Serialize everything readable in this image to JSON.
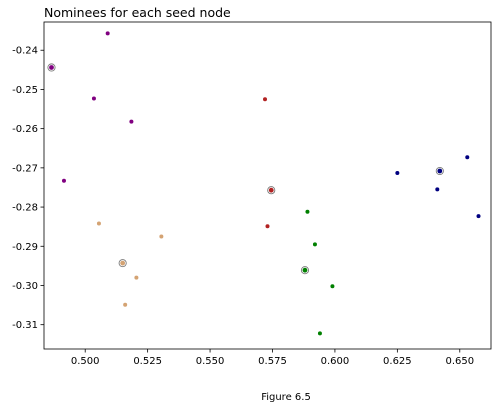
{
  "caption": "Figure 6.5",
  "chart_data": {
    "type": "scatter",
    "title": "Nominees for each seed node",
    "xlabel": "",
    "ylabel": "",
    "xlim": [
      0.4835,
      0.6625
    ],
    "ylim": [
      -0.3162,
      -0.2328
    ],
    "x_ticks": [
      "0.500",
      "0.525",
      "0.550",
      "0.575",
      "0.600",
      "0.625",
      "0.650"
    ],
    "x_tick_values": [
      0.5,
      0.525,
      0.55,
      0.575,
      0.6,
      0.625,
      0.65
    ],
    "y_ticks": [
      "-0.24",
      "-0.25",
      "-0.26",
      "-0.27",
      "-0.28",
      "-0.29",
      "-0.30",
      "-0.31"
    ],
    "y_tick_values": [
      -0.24,
      -0.25,
      -0.26,
      -0.27,
      -0.28,
      -0.29,
      -0.3,
      -0.31
    ],
    "grid": false,
    "series": [
      {
        "color": "#800080",
        "seed": [
          0.4865,
          -0.2444
        ],
        "points": [
          [
            0.509,
            -0.2357
          ],
          [
            0.5035,
            -0.2523
          ],
          [
            0.5185,
            -0.2582
          ],
          [
            0.4915,
            -0.2733
          ]
        ]
      },
      {
        "color": "#b22222",
        "seed": [
          0.5745,
          -0.2757
        ],
        "points": [
          [
            0.572,
            -0.2525
          ],
          [
            0.573,
            -0.2849
          ]
        ]
      },
      {
        "color": "#000080",
        "seed": [
          0.642,
          -0.2708
        ],
        "points": [
          [
            0.653,
            -0.2673
          ],
          [
            0.625,
            -0.2713
          ],
          [
            0.641,
            -0.2755
          ],
          [
            0.6575,
            -0.2823
          ]
        ]
      },
      {
        "color": "#008000",
        "seed": [
          0.588,
          -0.2961
        ],
        "points": [
          [
            0.589,
            -0.2812
          ],
          [
            0.592,
            -0.2895
          ],
          [
            0.599,
            -0.3002
          ],
          [
            0.594,
            -0.3122
          ]
        ]
      },
      {
        "color": "#d4a373",
        "seed": [
          0.515,
          -0.2943
        ],
        "points": [
          [
            0.5055,
            -0.2842
          ],
          [
            0.5305,
            -0.2875
          ],
          [
            0.5205,
            -0.298
          ],
          [
            0.516,
            -0.3049
          ]
        ]
      }
    ]
  }
}
